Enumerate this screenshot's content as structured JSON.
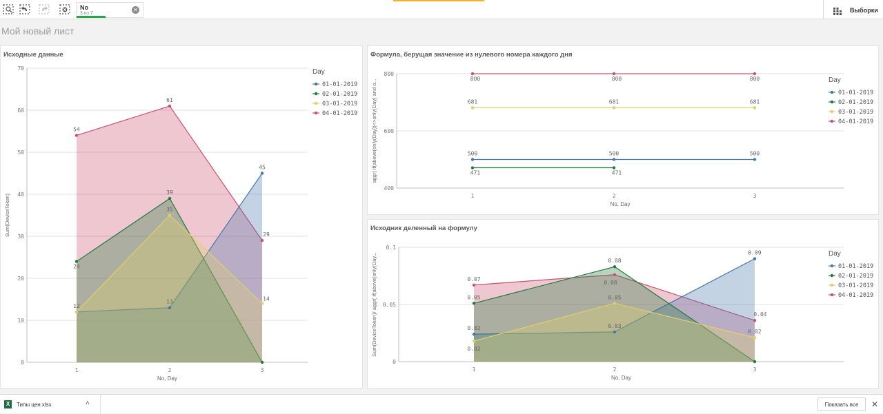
{
  "toolbar": {
    "icons": [
      "smart-search-icon",
      "step-back-icon",
      "step-forward-icon",
      "clear-selections-icon"
    ],
    "selection_chip": {
      "field": "No",
      "count": "3 из 7"
    },
    "selections_label": "Выборки",
    "accent_color": "#f8b02c"
  },
  "sheet": {
    "title": "Мой новый лист"
  },
  "colors": {
    "01-01-2019": "#4477aa",
    "02-01-2019": "#1f7a3b",
    "03-01-2019": "#e0cf6b",
    "04-01-2019": "#cc5070"
  },
  "charts": [
    {
      "title": "Исходные данные",
      "chart_data": {
        "type": "area",
        "x": [
          1,
          2,
          3
        ],
        "xlabel": "No, Day",
        "ylabel": "Sum(DeviceToken)",
        "ylim": [
          0,
          70
        ],
        "yticks": [
          0,
          10,
          20,
          30,
          40,
          50,
          60,
          70
        ],
        "grid": true,
        "legend": {
          "title": "Day",
          "position": "right"
        },
        "series": [
          {
            "name": "01-01-2019",
            "values": [
              12,
              13,
              45
            ],
            "labels": [
              "12",
              "13",
              "45"
            ]
          },
          {
            "name": "02-01-2019",
            "values": [
              24,
              39,
              0
            ],
            "labels": [
              "24",
              "39",
              null
            ]
          },
          {
            "name": "03-01-2019",
            "values": [
              12,
              35,
              14
            ],
            "labels": [
              null,
              "35",
              "14"
            ]
          },
          {
            "name": "04-01-2019",
            "values": [
              54,
              61,
              29
            ],
            "labels": [
              "54",
              "61",
              "29"
            ]
          }
        ]
      }
    },
    {
      "title": "Формула, берущая значение из нулевого номера каждого дня",
      "chart_data": {
        "type": "line",
        "x": [
          1,
          2,
          3
        ],
        "xlabel": "No, Day",
        "ylabel": "aggr( if(above(only(Day))<>only(Day) and o...",
        "ylim": [
          400,
          800
        ],
        "yticks": [
          400,
          600,
          800
        ],
        "grid": true,
        "legend": {
          "title": "Day",
          "position": "right"
        },
        "series": [
          {
            "name": "01-01-2019",
            "values": [
              500,
              500,
              500
            ],
            "labels": [
              "500",
              "500",
              "500"
            ]
          },
          {
            "name": "02-01-2019",
            "values": [
              471,
              471,
              null
            ],
            "labels": [
              "471",
              "471",
              null
            ]
          },
          {
            "name": "03-01-2019",
            "values": [
              681,
              681,
              681
            ],
            "labels": [
              "681",
              "681",
              "681"
            ]
          },
          {
            "name": "04-01-2019",
            "values": [
              800,
              800,
              800
            ],
            "labels": [
              "800",
              "800",
              "800"
            ]
          }
        ]
      }
    },
    {
      "title": "Исходник деленный на формулу",
      "chart_data": {
        "type": "area",
        "x": [
          1,
          2,
          3
        ],
        "xlabel": "No, Day",
        "ylabel": "Sum(DeviceToken)/ aggr( if(above(only(Day...",
        "ylim": [
          0,
          0.1
        ],
        "yticks": [
          0,
          0.05,
          0.1
        ],
        "yticklabels": [
          "0",
          "0.05",
          "0.1"
        ],
        "grid": true,
        "legend": {
          "title": "Day",
          "position": "right"
        },
        "series": [
          {
            "name": "01-01-2019",
            "values": [
              0.024,
              0.026,
              0.09
            ],
            "labels": [
              "0.02",
              "0.03",
              "0.09"
            ]
          },
          {
            "name": "02-01-2019",
            "values": [
              0.051,
              0.083,
              0.0
            ],
            "labels": [
              "0.05",
              "0.08",
              null
            ]
          },
          {
            "name": "03-01-2019",
            "values": [
              0.018,
              0.051,
              0.021
            ],
            "labels": [
              "0.02",
              "0.05",
              "0.02"
            ]
          },
          {
            "name": "04-01-2019",
            "values": [
              0.067,
              0.076,
              0.036
            ],
            "labels": [
              "0.07",
              "0.08",
              "0.04"
            ]
          }
        ]
      }
    }
  ],
  "download_bar": {
    "file_name": "Типы цен.xlsx",
    "show_all": "Показать все",
    "close": "✕"
  }
}
